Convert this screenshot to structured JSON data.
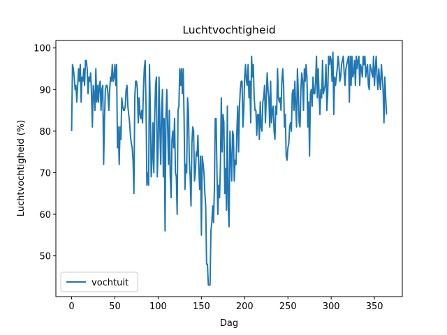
{
  "chart_data": {
    "type": "line",
    "title": "Luchtvochtigheid",
    "xlabel": "Dag",
    "ylabel": "Luchtvochtigheid (%)",
    "x": [
      0,
      1,
      2,
      3,
      4,
      5,
      6,
      7,
      8,
      9,
      10,
      11,
      12,
      13,
      14,
      15,
      16,
      17,
      18,
      19,
      20,
      21,
      22,
      23,
      24,
      25,
      26,
      27,
      28,
      29,
      30,
      31,
      32,
      33,
      34,
      35,
      36,
      37,
      38,
      39,
      40,
      41,
      42,
      43,
      44,
      45,
      46,
      47,
      48,
      49,
      50,
      51,
      52,
      53,
      54,
      55,
      56,
      57,
      58,
      59,
      60,
      61,
      62,
      63,
      64,
      65,
      66,
      67,
      68,
      69,
      70,
      71,
      72,
      73,
      74,
      75,
      76,
      77,
      78,
      79,
      80,
      81,
      82,
      83,
      84,
      85,
      86,
      87,
      88,
      89,
      90,
      91,
      92,
      93,
      94,
      95,
      96,
      97,
      98,
      99,
      100,
      101,
      102,
      103,
      104,
      105,
      106,
      107,
      108,
      109,
      110,
      111,
      112,
      113,
      114,
      115,
      116,
      117,
      118,
      119,
      120,
      121,
      122,
      123,
      124,
      125,
      126,
      127,
      128,
      129,
      130,
      131,
      132,
      133,
      134,
      135,
      136,
      137,
      138,
      139,
      140,
      141,
      142,
      143,
      144,
      145,
      146,
      147,
      148,
      149,
      150,
      151,
      152,
      153,
      154,
      155,
      156,
      157,
      158,
      159,
      160,
      161,
      162,
      163,
      164,
      165,
      166,
      167,
      168,
      169,
      170,
      171,
      172,
      173,
      174,
      175,
      176,
      177,
      178,
      179,
      180,
      181,
      182,
      183,
      184,
      185,
      186,
      187,
      188,
      189,
      190,
      191,
      192,
      193,
      194,
      195,
      196,
      197,
      198,
      199,
      200,
      201,
      202,
      203,
      204,
      205,
      206,
      207,
      208,
      209,
      210,
      211,
      212,
      213,
      214,
      215,
      216,
      217,
      218,
      219,
      220,
      221,
      222,
      223,
      224,
      225,
      226,
      227,
      228,
      229,
      230,
      231,
      232,
      233,
      234,
      235,
      236,
      237,
      238,
      239,
      240,
      241,
      242,
      243,
      244,
      245,
      246,
      247,
      248,
      249,
      250,
      251,
      252,
      253,
      254,
      255,
      256,
      257,
      258,
      259,
      260,
      261,
      262,
      263,
      264,
      265,
      266,
      267,
      268,
      269,
      270,
      271,
      272,
      273,
      274,
      275,
      276,
      277,
      278,
      279,
      280,
      281,
      282,
      283,
      284,
      285,
      286,
      287,
      288,
      289,
      290,
      291,
      292,
      293,
      294,
      295,
      296,
      297,
      298,
      299,
      300,
      301,
      302,
      303,
      304,
      305,
      306,
      307,
      308,
      309,
      310,
      311,
      312,
      313,
      314,
      315,
      316,
      317,
      318,
      319,
      320,
      321,
      322,
      323,
      324,
      325,
      326,
      327,
      328,
      329,
      330,
      331,
      332,
      333,
      334,
      335,
      336,
      337,
      338,
      339,
      340,
      341,
      342,
      343,
      344,
      345,
      346,
      347,
      348,
      349,
      350,
      351,
      352,
      353,
      354,
      355,
      356,
      357,
      358,
      359,
      360,
      361,
      362,
      363,
      364
    ],
    "series": [
      {
        "name": "vochtuit",
        "color": "#1f77b4",
        "values": [
          80,
          96,
          95,
          93,
          90,
          91,
          87,
          91,
          95,
          92,
          96,
          87,
          93,
          92,
          95,
          91,
          97,
          97,
          95,
          89,
          93,
          92,
          94,
          89,
          81,
          91,
          89,
          85,
          95,
          87,
          91,
          87,
          91,
          92,
          85,
          90,
          91,
          72,
          83,
          90,
          91,
          91,
          89,
          85,
          90,
          93,
          92,
          96,
          92,
          93,
          96,
          91,
          96,
          76,
          81,
          72,
          81,
          78,
          88,
          86,
          85,
          85,
          86,
          90,
          91,
          86,
          84,
          82,
          79,
          77,
          76,
          73,
          65,
          88,
          92,
          92,
          90,
          82,
          88,
          84,
          83,
          85,
          82,
          90,
          95,
          97,
          86,
          67,
          70,
          67,
          96,
          85,
          69,
          73,
          82,
          70,
          83,
          91,
          93,
          69,
          76,
          93,
          81,
          72,
          85,
          90,
          69,
          83,
          56,
          83,
          90,
          81,
          72,
          85,
          69,
          64,
          78,
          80,
          76,
          83,
          70,
          69,
          60,
          85,
          86,
          95,
          91,
          95,
          89,
          95,
          83,
          66,
          72,
          70,
          88,
          85,
          73,
          69,
          62,
          77,
          81,
          80,
          68,
          70,
          75,
          74,
          79,
          71,
          66,
          74,
          55,
          74,
          72,
          70,
          65,
          62,
          48,
          48,
          43,
          43,
          43,
          56,
          58,
          62,
          58,
          66,
          83,
          83,
          70,
          60,
          67,
          64,
          72,
          88,
          75,
          84,
          82,
          65,
          71,
          61,
          86,
          62,
          57,
          80,
          74,
          68,
          80,
          79,
          68,
          73,
          72,
          80,
          86,
          75,
          86,
          90,
          92,
          92,
          81,
          85,
          93,
          96,
          92,
          91,
          96,
          88,
          92,
          82,
          98,
          93,
          96,
          88,
          85,
          85,
          79,
          84,
          84,
          78,
          87,
          81,
          80,
          87,
          88,
          91,
          82,
          88,
          94,
          90,
          88,
          81,
          92,
          82,
          85,
          86,
          80,
          78,
          86,
          84,
          95,
          88,
          87,
          88,
          85,
          92,
          95,
          91,
          81,
          84,
          74,
          73,
          76,
          77,
          81,
          82,
          80,
          89,
          90,
          85,
          92,
          86,
          81,
          95,
          89,
          82,
          81,
          90,
          94,
          92,
          85,
          95,
          92,
          96,
          93,
          81,
          87,
          74,
          89,
          90,
          86,
          93,
          89,
          89,
          92,
          98,
          88,
          95,
          89,
          84,
          90,
          88,
          97,
          89,
          90,
          91,
          96,
          85,
          89,
          98,
          96,
          98,
          97,
          92,
          99,
          84,
          93,
          91,
          93,
          95,
          98,
          96,
          92,
          93,
          96,
          97,
          98,
          94,
          91,
          95,
          96,
          97,
          98,
          87,
          98,
          91,
          98,
          93,
          94,
          97,
          91,
          98,
          95,
          97,
          98,
          91,
          96,
          95,
          93,
          98,
          96,
          98,
          93,
          95,
          96,
          91,
          90,
          96,
          95,
          94,
          93,
          98,
          91,
          95,
          98,
          93,
          90,
          95,
          92,
          90,
          96,
          93,
          90,
          82,
          93,
          88,
          84
        ]
      }
    ],
    "xlim": [
      -18.2,
      382.2
    ],
    "xticks": [
      0,
      50,
      100,
      150,
      200,
      250,
      300,
      350
    ],
    "ylim": [
      40.2,
      101.8
    ],
    "yticks": [
      50,
      60,
      70,
      80,
      90,
      100
    ],
    "legend": "lower left"
  }
}
